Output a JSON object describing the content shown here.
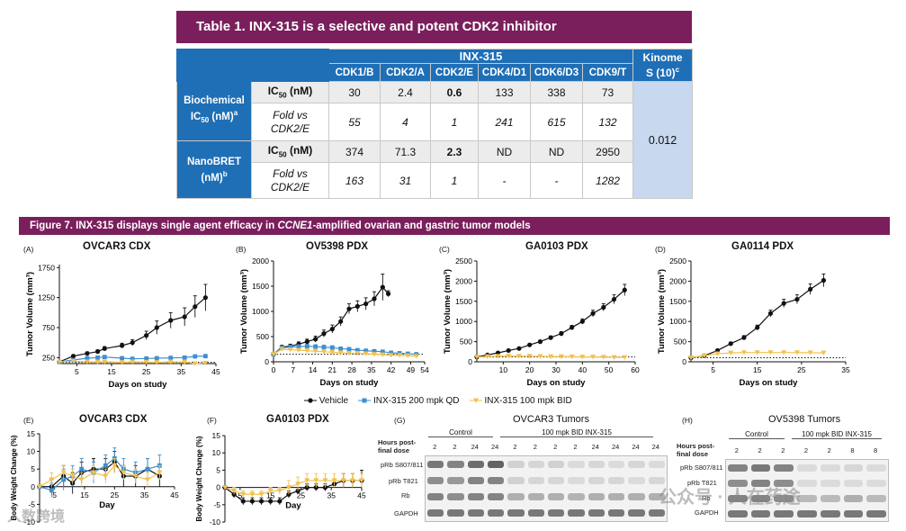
{
  "table1": {
    "banner": "Table 1. INX-315 is a selective and potent CDK2 inhibitor",
    "group_header": "INX-315",
    "kinome_header_line1": "Kinome",
    "kinome_header_line2": "S (10)",
    "kinome_header_sup": "c",
    "columns": [
      "CDK1/B",
      "CDK2/A",
      "CDK2/E",
      "CDK4/D1",
      "CDK6/D3",
      "CDK9/T"
    ],
    "biochemical_label_line1": "Biochemical",
    "biochemical_label_line2": "IC",
    "biochemical_label_sub": "50",
    "biochemical_label_tail": " (nM)",
    "biochemical_label_sup": "a",
    "nanobret_label_line1": "NanoBRET",
    "nanobret_label_line2": "(nM)",
    "nanobret_label_sup": "b",
    "ic50_label": "IC",
    "ic50_sub": "50",
    "ic50_tail": " (nM)",
    "fold_label_line1": "Fold vs",
    "fold_label_line2": "CDK2/E",
    "biochem_ic50": [
      "30",
      "2.4",
      "0.6",
      "133",
      "338",
      "73"
    ],
    "biochem_fold": [
      "55",
      "4",
      "1",
      "241",
      "615",
      "132"
    ],
    "nanobret_ic50": [
      "374",
      "71.3",
      "2.3",
      "ND",
      "ND",
      "2950"
    ],
    "nanobret_fold": [
      "163",
      "31",
      "1",
      "-",
      "-",
      "1282"
    ],
    "kinome_value": "0.012"
  },
  "figure7": {
    "banner_pre": "Figure 7. INX-315 displays single agent efficacy in ",
    "banner_gene": "CCNE1",
    "banner_post": "-amplified ovarian and gastric tumor models",
    "legend": {
      "vehicle": "Vehicle",
      "qd": "INX-315 200 mpk QD",
      "bid": "INX-315 100 mpk BID"
    },
    "panel_letters": [
      "(A)",
      "(B)",
      "(C)",
      "(D)",
      "(E)",
      "(F)",
      "(G)",
      "(H)"
    ]
  },
  "colors": {
    "banner": "#7a1f5c",
    "table_header": "#1f6fb6",
    "kinome_cell": "#c7d8ef",
    "vehicle": "#111111",
    "qd": "#3d8fd1",
    "bid": "#f2c14e"
  },
  "chart_data": [
    {
      "id": "A",
      "type": "line",
      "title": "OVCAR3 CDX",
      "xlabel": "Days on study",
      "ylabel": "Tumor Volume (mm³)",
      "xlim": [
        0,
        45
      ],
      "ylim": [
        150,
        1800
      ],
      "xticks": [
        5,
        15,
        25,
        35,
        45
      ],
      "yticks": [
        250,
        750,
        1250,
        1750
      ],
      "baseline": 170,
      "series": [
        {
          "name": "Vehicle",
          "x": [
            0,
            4,
            8,
            11,
            13,
            18,
            21,
            25,
            28,
            32,
            36,
            39,
            42
          ],
          "y": [
            180,
            275,
            320,
            350,
            400,
            450,
            500,
            620,
            750,
            870,
            930,
            1100,
            1250
          ],
          "err": [
            0,
            20,
            25,
            30,
            35,
            40,
            50,
            70,
            110,
            130,
            150,
            180,
            220
          ]
        },
        {
          "name": "INX-315 200 mpk QD",
          "x": [
            0,
            4,
            8,
            11,
            13,
            18,
            21,
            25,
            28,
            32,
            36,
            39,
            42
          ],
          "y": [
            180,
            210,
            240,
            250,
            260,
            240,
            230,
            235,
            240,
            245,
            250,
            270,
            275
          ],
          "err": [
            0,
            15,
            15,
            15,
            20,
            20,
            20,
            20,
            20,
            20,
            20,
            25,
            25
          ]
        },
        {
          "name": "INX-315 100 mpk BID",
          "x": [
            0,
            4,
            8,
            11,
            13,
            18,
            21,
            25,
            28,
            32,
            36,
            39,
            42
          ],
          "y": [
            180,
            190,
            180,
            175,
            180,
            170,
            180,
            175,
            170,
            180,
            175,
            150,
            160
          ],
          "err": [
            0,
            10,
            10,
            10,
            10,
            10,
            10,
            10,
            10,
            10,
            10,
            10,
            10
          ]
        }
      ]
    },
    {
      "id": "B",
      "type": "line",
      "title": "OV5398 PDX",
      "xlabel": "Days on study",
      "ylabel": "Tumor Volume (mm³)",
      "xlim": [
        0,
        54
      ],
      "ylim": [
        0,
        2000
      ],
      "xticks": [
        0,
        7,
        14,
        21,
        28,
        35,
        42,
        49,
        54
      ],
      "yticks": [
        0,
        500,
        1000,
        1500,
        2000
      ],
      "baseline": 150,
      "series": [
        {
          "name": "Vehicle",
          "x": [
            0,
            3,
            6,
            9,
            12,
            15,
            18,
            21,
            24,
            27,
            30,
            33,
            36,
            39,
            41
          ],
          "y": [
            150,
            290,
            310,
            350,
            400,
            450,
            560,
            650,
            800,
            1050,
            1100,
            1150,
            1250,
            1480,
            1350
          ],
          "err": [
            20,
            40,
            40,
            45,
            50,
            60,
            70,
            80,
            90,
            100,
            110,
            120,
            140,
            260,
            60
          ]
        },
        {
          "name": "INX-315 200 mpk QD",
          "x": [
            0,
            3,
            6,
            9,
            12,
            15,
            18,
            21,
            24,
            27,
            30,
            33,
            36,
            39,
            42,
            45,
            48,
            51
          ],
          "y": [
            150,
            280,
            290,
            300,
            310,
            300,
            290,
            280,
            260,
            250,
            230,
            220,
            210,
            200,
            180,
            170,
            160,
            150
          ],
          "err": [
            20,
            40,
            40,
            40,
            40,
            40,
            40,
            40,
            35,
            35,
            30,
            30,
            30,
            30,
            25,
            25,
            20,
            20
          ]
        },
        {
          "name": "INX-315 100 mpk BID",
          "x": [
            0,
            3,
            6,
            9,
            12,
            15,
            18,
            21,
            24,
            27,
            30,
            33,
            36,
            39,
            42,
            45,
            48,
            51
          ],
          "y": [
            150,
            250,
            240,
            230,
            220,
            210,
            200,
            190,
            180,
            170,
            170,
            160,
            150,
            140,
            130,
            130,
            120,
            110
          ],
          "err": [
            20,
            30,
            30,
            30,
            30,
            30,
            30,
            30,
            25,
            25,
            25,
            25,
            20,
            20,
            20,
            20,
            20,
            20
          ]
        }
      ]
    },
    {
      "id": "C",
      "type": "line",
      "title": "GA0103 PDX",
      "xlabel": "Days on study",
      "ylabel": "Tumor Volume (mm³)",
      "xlim": [
        0,
        60
      ],
      "ylim": [
        0,
        2500
      ],
      "xticks": [
        10,
        20,
        30,
        40,
        50,
        60
      ],
      "yticks": [
        0,
        500,
        1000,
        1500,
        2000,
        2500
      ],
      "baseline": 120,
      "series": [
        {
          "name": "Vehicle",
          "x": [
            0,
            4,
            8,
            12,
            16,
            20,
            24,
            28,
            32,
            36,
            40,
            44,
            48,
            52,
            56
          ],
          "y": [
            120,
            170,
            220,
            280,
            330,
            420,
            500,
            600,
            700,
            850,
            1000,
            1200,
            1350,
            1550,
            1780
          ],
          "err": [
            10,
            15,
            20,
            20,
            25,
            30,
            35,
            40,
            45,
            55,
            65,
            80,
            90,
            110,
            140
          ]
        },
        {
          "name": "INX-315 100 mpk BID",
          "x": [
            0,
            4,
            8,
            12,
            16,
            20,
            24,
            28,
            32,
            36,
            40,
            44,
            48,
            52,
            56
          ],
          "y": [
            120,
            130,
            140,
            145,
            140,
            140,
            135,
            130,
            130,
            125,
            120,
            120,
            115,
            110,
            110
          ],
          "err": [
            10,
            15,
            15,
            15,
            15,
            15,
            15,
            15,
            15,
            15,
            15,
            15,
            15,
            15,
            15
          ]
        }
      ]
    },
    {
      "id": "D",
      "type": "line",
      "title": "GA0114 PDX",
      "xlabel": "Days on study",
      "ylabel": "Tumor Volume (mm³)",
      "xlim": [
        0,
        35
      ],
      "ylim": [
        0,
        2500
      ],
      "xticks": [
        5,
        15,
        25,
        35
      ],
      "yticks": [
        0,
        500,
        1000,
        1500,
        2000,
        2500
      ],
      "baseline": 100,
      "series": [
        {
          "name": "Vehicle",
          "x": [
            0,
            3,
            6,
            9,
            12,
            15,
            18,
            21,
            24,
            27,
            30
          ],
          "y": [
            100,
            150,
            280,
            450,
            600,
            850,
            1200,
            1450,
            1550,
            1800,
            2020
          ],
          "err": [
            10,
            20,
            30,
            40,
            50,
            60,
            80,
            100,
            110,
            130,
            160
          ]
        },
        {
          "name": "INX-315 100 mpk BID",
          "x": [
            0,
            3,
            6,
            9,
            12,
            15,
            18,
            21,
            24,
            27,
            30
          ],
          "y": [
            100,
            150,
            200,
            220,
            230,
            230,
            230,
            230,
            230,
            225,
            220
          ],
          "err": [
            10,
            15,
            20,
            20,
            20,
            20,
            20,
            20,
            20,
            20,
            20
          ]
        }
      ]
    },
    {
      "id": "E",
      "type": "line",
      "title": "OVCAR3 CDX",
      "xlabel": "Day",
      "ylabel": "Body Weight Change (%)",
      "xlim": [
        0,
        45
      ],
      "ylim": [
        -10,
        15
      ],
      "xticks": [
        5,
        15,
        25,
        35,
        45
      ],
      "yticks": [
        -10,
        -5,
        0,
        5,
        10,
        15
      ],
      "series": [
        {
          "name": "Vehicle",
          "x": [
            0,
            4,
            8,
            11,
            14,
            18,
            22,
            25,
            28,
            32,
            36,
            40
          ],
          "y": [
            0,
            0,
            3,
            1,
            4,
            5,
            5,
            7,
            3,
            3,
            5,
            3
          ],
          "err": [
            0,
            2,
            3,
            3,
            3,
            3,
            3,
            3,
            3,
            3,
            3,
            3
          ]
        },
        {
          "name": "INX-315 200 mpk QD",
          "x": [
            0,
            4,
            8,
            11,
            14,
            18,
            22,
            25,
            28,
            32,
            36,
            40
          ],
          "y": [
            0,
            -1,
            2,
            3,
            5,
            4,
            6,
            8,
            5,
            4,
            5,
            6
          ],
          "err": [
            0,
            2,
            3,
            3,
            3,
            3,
            3,
            3,
            3,
            3,
            3,
            3
          ]
        },
        {
          "name": "INX-315 100 mpk BID",
          "x": [
            0,
            4,
            8,
            11,
            14,
            18,
            22,
            25,
            28,
            32,
            36,
            40
          ],
          "y": [
            0,
            2,
            4,
            3,
            2,
            4,
            3,
            6,
            4,
            3,
            2,
            4
          ],
          "err": [
            0,
            2,
            2,
            2,
            2,
            2,
            2,
            2,
            2,
            2,
            2,
            2
          ]
        }
      ]
    },
    {
      "id": "F",
      "type": "line",
      "title": "GA0103  PDX",
      "xlabel": "Day",
      "ylabel": "Body Weight Change (%)",
      "xlim": [
        0,
        45
      ],
      "ylim": [
        -10,
        15
      ],
      "xticks": [
        5,
        15,
        25,
        35,
        45
      ],
      "yticks": [
        -10,
        -5,
        0,
        5,
        10,
        15
      ],
      "series": [
        {
          "name": "Vehicle",
          "x": [
            0,
            3,
            6,
            9,
            12,
            15,
            18,
            21,
            24,
            27,
            30,
            33,
            36,
            39,
            42,
            45
          ],
          "y": [
            0,
            -2,
            -4,
            -4,
            -4,
            -4,
            -4,
            -2,
            -1,
            0,
            0,
            0,
            1,
            2,
            2,
            2
          ],
          "err": [
            0,
            1,
            1,
            1,
            1,
            1,
            1,
            1,
            1,
            1,
            1,
            1,
            1,
            2,
            2,
            3
          ]
        },
        {
          "name": "INX-315 100 mpk BID",
          "x": [
            0,
            3,
            6,
            9,
            12,
            15,
            18,
            21,
            24,
            27,
            30,
            33,
            36,
            39,
            42,
            45
          ],
          "y": [
            0,
            -1,
            -2,
            -2,
            -2,
            -1,
            -1,
            0,
            1,
            2,
            2,
            2,
            2,
            2,
            2,
            2
          ],
          "err": [
            0,
            1,
            1,
            1,
            1,
            1,
            1,
            2,
            2,
            2,
            2,
            2,
            2,
            2,
            2,
            2
          ]
        }
      ]
    }
  ],
  "blots": {
    "G": {
      "title": "OVCAR3 Tumors",
      "hours_label": "Hours post-final dose",
      "control_label": "Control",
      "treated_label": "100 mpk BID INX-315",
      "lanes": [
        "2",
        "2",
        "24",
        "24",
        "2",
        "2",
        "2",
        "2",
        "24",
        "24",
        "24",
        "24"
      ],
      "rows": [
        "pRb S807/811",
        "pRb T821",
        "Rb",
        "GAPDH"
      ]
    },
    "H": {
      "title": "OV5398 Tumors",
      "hours_label": "Hours post-final dose",
      "control_label": "Control",
      "treated_label": "100 mpk BID INX-315",
      "lanes": [
        "2",
        "2",
        "2",
        "2",
        "2",
        "8",
        "8"
      ],
      "rows": [
        "pRb S807/811",
        "pRb T821",
        "Rb",
        "GAPDH"
      ]
    }
  },
  "watermark": {
    "left": "人数跨境",
    "right": "公众号 · 人在药途"
  }
}
